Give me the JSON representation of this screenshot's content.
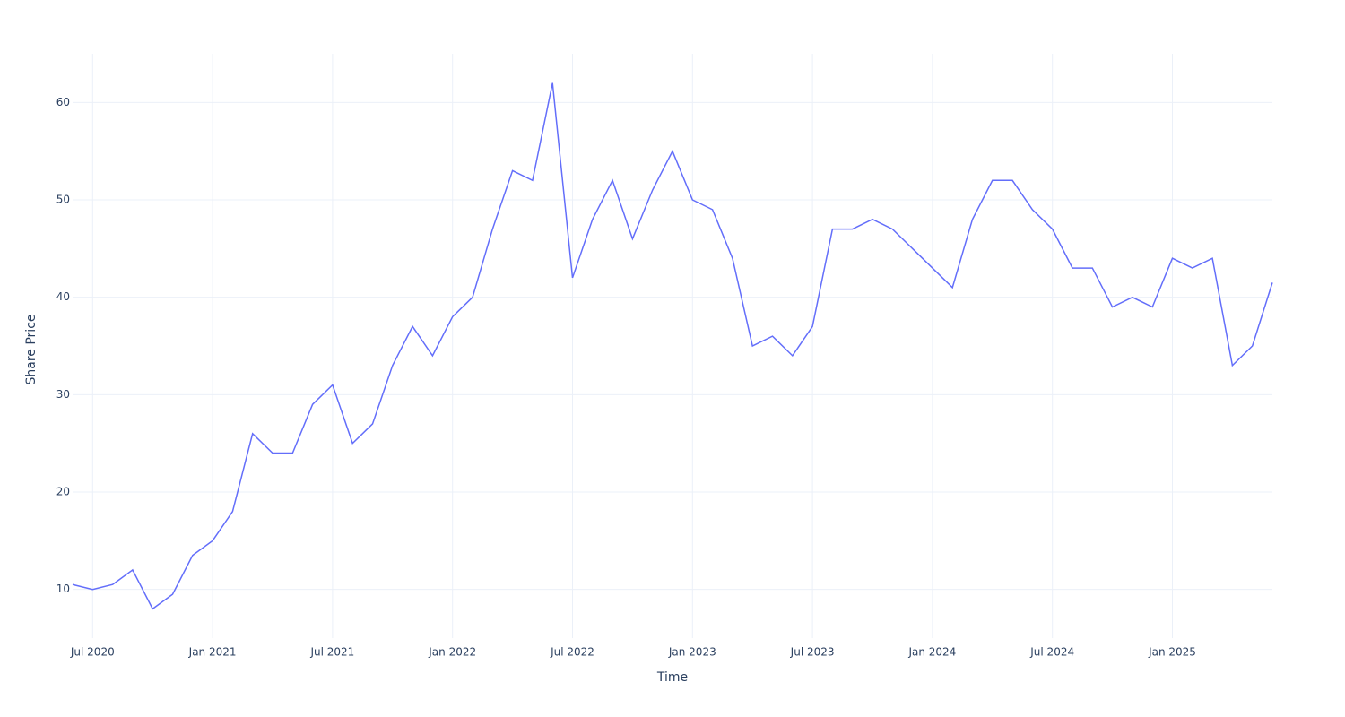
{
  "chart_data": {
    "type": "line",
    "x_label": "Time",
    "y_label": "Share Price",
    "x": [
      "2020-06",
      "2020-07",
      "2020-08",
      "2020-09",
      "2020-10",
      "2020-11",
      "2020-12",
      "2021-01",
      "2021-02",
      "2021-03",
      "2021-04",
      "2021-05",
      "2021-06",
      "2021-07",
      "2021-08",
      "2021-09",
      "2021-10",
      "2021-11",
      "2021-12",
      "2022-01",
      "2022-02",
      "2022-03",
      "2022-04",
      "2022-05",
      "2022-06",
      "2022-07",
      "2022-08",
      "2022-09",
      "2022-10",
      "2022-11",
      "2022-12",
      "2023-01",
      "2023-02",
      "2023-03",
      "2023-04",
      "2023-05",
      "2023-06",
      "2023-07",
      "2023-08",
      "2023-09",
      "2023-10",
      "2023-11",
      "2023-12",
      "2024-01",
      "2024-02",
      "2024-03",
      "2024-04",
      "2024-05",
      "2024-06",
      "2024-07",
      "2024-08",
      "2024-09",
      "2024-10",
      "2024-11",
      "2024-12",
      "2025-01",
      "2025-02",
      "2025-03",
      "2025-04",
      "2025-05",
      "2025-06"
    ],
    "series": [
      {
        "name": "Share Price",
        "color": "#636efa",
        "values": [
          10.5,
          10,
          10.5,
          12,
          8,
          9.5,
          13.5,
          15,
          18,
          26,
          24,
          24,
          29,
          31,
          25,
          27,
          33,
          37,
          34,
          38,
          40,
          47,
          53,
          52,
          62,
          42,
          48,
          52,
          46,
          51,
          55,
          50,
          49,
          44,
          35,
          36,
          34,
          37,
          47,
          47,
          48,
          47,
          45,
          43,
          41,
          48,
          52,
          52,
          49,
          47,
          43,
          43,
          39,
          40,
          39,
          44,
          43,
          44,
          33,
          35,
          41.5
        ]
      }
    ],
    "xlim": [
      "2020-06",
      "2025-06"
    ],
    "xticks": [
      {
        "value": "2020-07",
        "label": "Jul 2020"
      },
      {
        "value": "2021-01",
        "label": "Jan 2021"
      },
      {
        "value": "2021-07",
        "label": "Jul 2021"
      },
      {
        "value": "2022-01",
        "label": "Jan 2022"
      },
      {
        "value": "2022-07",
        "label": "Jul 2022"
      },
      {
        "value": "2023-01",
        "label": "Jan 2023"
      },
      {
        "value": "2023-07",
        "label": "Jul 2023"
      },
      {
        "value": "2024-01",
        "label": "Jan 2024"
      },
      {
        "value": "2024-07",
        "label": "Jul 2024"
      },
      {
        "value": "2025-01",
        "label": "Jan 2025"
      }
    ],
    "ylim": [
      5,
      65
    ],
    "yticks": [
      10,
      20,
      30,
      40,
      50,
      60
    ],
    "grid": true
  }
}
